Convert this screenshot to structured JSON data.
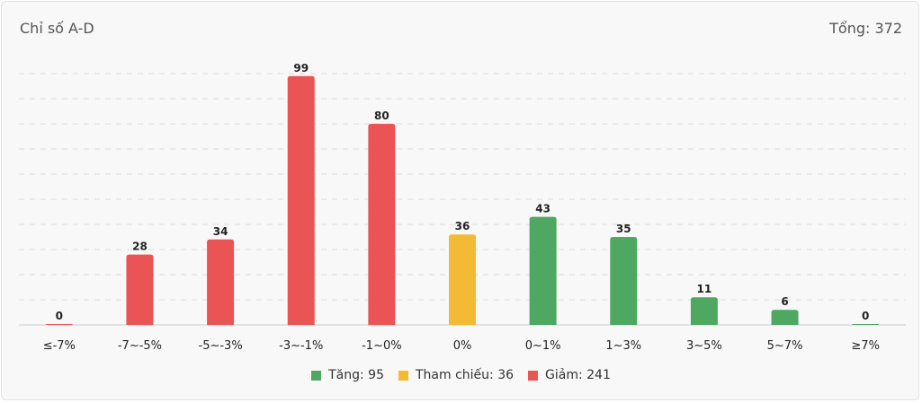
{
  "header": {
    "title": "Chỉ số A-D",
    "total_text": "Tổng: 372"
  },
  "colors": {
    "up": "#4fa862",
    "ref": "#f2ba35",
    "down": "#eb5454",
    "grid": "#dddddd",
    "axis": "#cccccc"
  },
  "legend": [
    {
      "label": "Tăng: 95",
      "color_key": "up"
    },
    {
      "label": "Tham chiếu: 36",
      "color_key": "ref"
    },
    {
      "label": "Giảm: 241",
      "color_key": "down"
    }
  ],
  "chart_data": {
    "type": "bar",
    "categories": [
      "≤-7%",
      "-7~-5%",
      "-5~-3%",
      "-3~-1%",
      "-1~0%",
      "0%",
      "0~1%",
      "1~3%",
      "3~5%",
      "5~7%",
      "≥7%"
    ],
    "values": [
      0,
      28,
      34,
      99,
      80,
      36,
      43,
      35,
      11,
      6,
      0
    ],
    "bar_colors": [
      "down",
      "down",
      "down",
      "down",
      "down",
      "ref",
      "up",
      "up",
      "up",
      "up",
      "up"
    ],
    "ylim": [
      0,
      100
    ],
    "grid": true,
    "legend_position": "bottom"
  }
}
